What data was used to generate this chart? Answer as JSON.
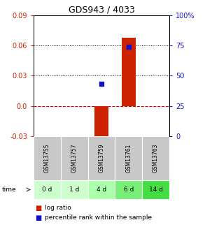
{
  "title": "GDS943 / 4033",
  "samples": [
    "GSM13755",
    "GSM13757",
    "GSM13759",
    "GSM13761",
    "GSM13763"
  ],
  "time_labels": [
    "0 d",
    "1 d",
    "4 d",
    "6 d",
    "14 d"
  ],
  "log_ratios": [
    0.0,
    0.0,
    -0.035,
    0.068,
    0.0
  ],
  "percentile_ranks": [
    null,
    null,
    0.022,
    0.059,
    null
  ],
  "ylim_left": [
    -0.03,
    0.09
  ],
  "ylim_right": [
    0.0,
    100.0
  ],
  "yticks_left": [
    -0.03,
    0.0,
    0.03,
    0.06,
    0.09
  ],
  "yticks_right": [
    0,
    25,
    50,
    75,
    100
  ],
  "ytick_labels_right": [
    "0",
    "25",
    "50",
    "75",
    "100%"
  ],
  "bar_color": "#cc2200",
  "dot_color": "#1111cc",
  "zero_line_color": "#cc0000",
  "grid_color": "#000000",
  "sample_bg_color": "#c8c8c8",
  "time_bg_colors": [
    "#ccffcc",
    "#ccffcc",
    "#aaffaa",
    "#77ee77",
    "#44dd44"
  ],
  "legend_bar_label": "log ratio",
  "legend_dot_label": "percentile rank within the sample",
  "left_tick_color": "#cc2200",
  "right_tick_color": "#1111cc",
  "bar_width": 0.5,
  "dot_size": 18
}
